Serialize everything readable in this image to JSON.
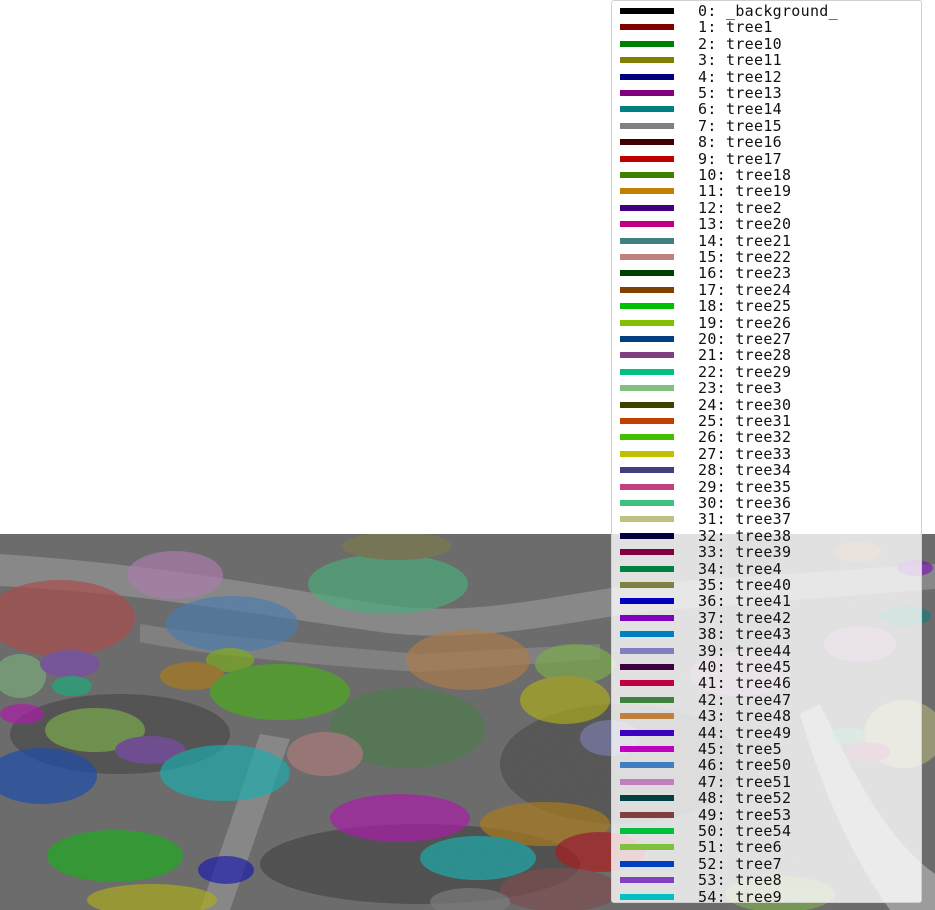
{
  "legend": {
    "entries": [
      {
        "label": "0: _background_",
        "color": "#000000"
      },
      {
        "label": "1: tree1",
        "color": "#800000"
      },
      {
        "label": "2: tree10",
        "color": "#008000"
      },
      {
        "label": "3: tree11",
        "color": "#808000"
      },
      {
        "label": "4: tree12",
        "color": "#000080"
      },
      {
        "label": "5: tree13",
        "color": "#800080"
      },
      {
        "label": "6: tree14",
        "color": "#008080"
      },
      {
        "label": "7: tree15",
        "color": "#808080"
      },
      {
        "label": "8: tree16",
        "color": "#400000"
      },
      {
        "label": "9: tree17",
        "color": "#c00000"
      },
      {
        "label": "10: tree18",
        "color": "#408000"
      },
      {
        "label": "11: tree19",
        "color": "#c08000"
      },
      {
        "label": "12: tree2",
        "color": "#400080"
      },
      {
        "label": "13: tree20",
        "color": "#c00080"
      },
      {
        "label": "14: tree21",
        "color": "#408080"
      },
      {
        "label": "15: tree22",
        "color": "#c08080"
      },
      {
        "label": "16: tree23",
        "color": "#004000"
      },
      {
        "label": "17: tree24",
        "color": "#804000"
      },
      {
        "label": "18: tree25",
        "color": "#00c000"
      },
      {
        "label": "19: tree26",
        "color": "#80c000"
      },
      {
        "label": "20: tree27",
        "color": "#004080"
      },
      {
        "label": "21: tree28",
        "color": "#804080"
      },
      {
        "label": "22: tree29",
        "color": "#00c080"
      },
      {
        "label": "23: tree3",
        "color": "#80c080"
      },
      {
        "label": "24: tree30",
        "color": "#404000"
      },
      {
        "label": "25: tree31",
        "color": "#c04000"
      },
      {
        "label": "26: tree32",
        "color": "#40c000"
      },
      {
        "label": "27: tree33",
        "color": "#c0c000"
      },
      {
        "label": "28: tree34",
        "color": "#404080"
      },
      {
        "label": "29: tree35",
        "color": "#c04080"
      },
      {
        "label": "30: tree36",
        "color": "#40c080"
      },
      {
        "label": "31: tree37",
        "color": "#c0c080"
      },
      {
        "label": "32: tree38",
        "color": "#000040"
      },
      {
        "label": "33: tree39",
        "color": "#800040"
      },
      {
        "label": "34: tree4",
        "color": "#008040"
      },
      {
        "label": "35: tree40",
        "color": "#808040"
      },
      {
        "label": "36: tree41",
        "color": "#0000c0"
      },
      {
        "label": "37: tree42",
        "color": "#8000c0"
      },
      {
        "label": "38: tree43",
        "color": "#0080c0"
      },
      {
        "label": "39: tree44",
        "color": "#8080c0"
      },
      {
        "label": "40: tree45",
        "color": "#400040"
      },
      {
        "label": "41: tree46",
        "color": "#c00040"
      },
      {
        "label": "42: tree47",
        "color": "#408040"
      },
      {
        "label": "43: tree48",
        "color": "#c08040"
      },
      {
        "label": "44: tree49",
        "color": "#4000c0"
      },
      {
        "label": "45: tree5",
        "color": "#c000c0"
      },
      {
        "label": "46: tree50",
        "color": "#4080c0"
      },
      {
        "label": "47: tree51",
        "color": "#c080c0"
      },
      {
        "label": "48: tree52",
        "color": "#004040"
      },
      {
        "label": "49: tree53",
        "color": "#804040"
      },
      {
        "label": "50: tree54",
        "color": "#00c040"
      },
      {
        "label": "51: tree6",
        "color": "#80c040"
      },
      {
        "label": "52: tree7",
        "color": "#0040c0"
      },
      {
        "label": "53: tree8",
        "color": "#8040c0"
      },
      {
        "label": "54: tree9",
        "color": "#00c0c0"
      }
    ]
  }
}
